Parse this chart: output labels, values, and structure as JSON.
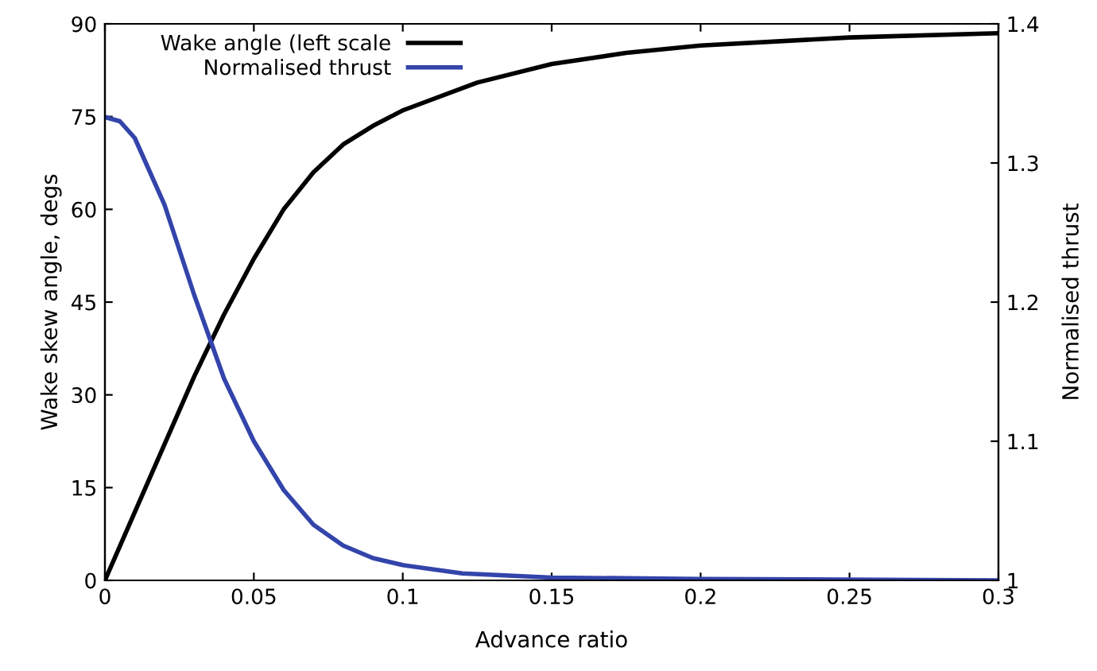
{
  "chart_data": {
    "type": "line",
    "xlabel": "Advance ratio",
    "ylabel": "Wake skew angle, degs",
    "y2label": "Normalised thrust",
    "xlim": [
      0,
      0.3
    ],
    "xticks": [
      0,
      0.05,
      0.1,
      0.15,
      0.2,
      0.25,
      0.3
    ],
    "ylim": [
      0,
      90
    ],
    "yticks": [
      0,
      15,
      30,
      45,
      60,
      75,
      90
    ],
    "y2lim": [
      1,
      1.4
    ],
    "y2ticks": [
      1,
      1.1,
      1.2,
      1.3,
      1.4
    ],
    "grid": false,
    "legend": "top",
    "marker": "none",
    "line_style": "solid",
    "series": [
      {
        "name": "Wake angle (left scale",
        "color": "#000000",
        "x": [
          0,
          0.01,
          0.02,
          0.03,
          0.04,
          0.05,
          0.06,
          0.07,
          0.08,
          0.09,
          0.1,
          0.125,
          0.15,
          0.175,
          0.2,
          0.25,
          0.3
        ],
        "values": [
          0,
          11,
          22,
          33,
          43,
          52,
          60,
          66,
          70.5,
          73.5,
          76,
          80.5,
          83.5,
          85.3,
          86.5,
          87.8,
          88.5
        ]
      },
      {
        "name": "Normalised thrust",
        "color": "#3344aa",
        "axis": "y2",
        "x": [
          0,
          0.005,
          0.01,
          0.02,
          0.03,
          0.035,
          0.04,
          0.05,
          0.06,
          0.07,
          0.08,
          0.09,
          0.1,
          0.12,
          0.15,
          0.2,
          0.3
        ],
        "values": [
          1.333,
          1.33,
          1.318,
          1.27,
          1.205,
          1.175,
          1.145,
          1.1,
          1.065,
          1.04,
          1.025,
          1.016,
          1.011,
          1.005,
          1.002,
          1.001,
          1.0
        ]
      }
    ]
  }
}
